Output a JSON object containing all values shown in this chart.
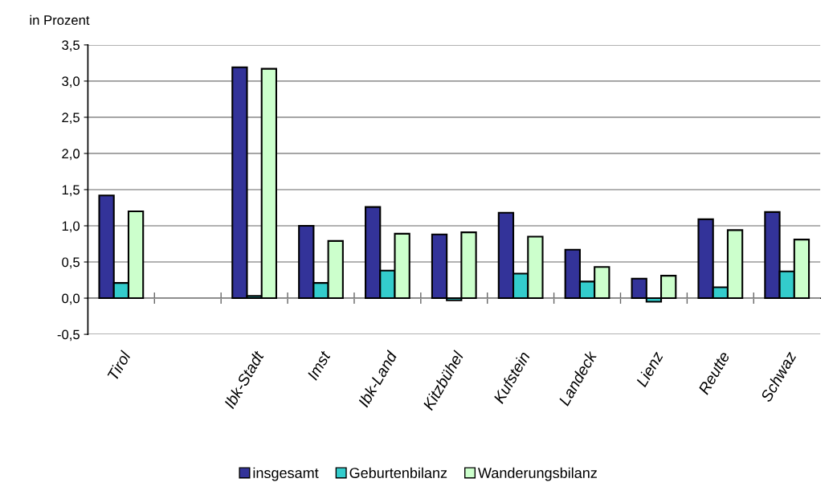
{
  "chart_data": {
    "type": "bar",
    "ylabel": "in Prozent",
    "categories": [
      "Tirol",
      null,
      "Ibk-Stadt",
      "Imst",
      "Ibk-Land",
      "Kitzbühel",
      "Kufstein",
      "Landeck",
      "Lienz",
      "Reutte",
      "Schwaz"
    ],
    "series": [
      {
        "name": "insgesamt",
        "color": "#333399",
        "values": [
          1.42,
          null,
          3.19,
          1.0,
          1.26,
          0.88,
          1.18,
          0.67,
          0.27,
          1.09,
          1.19
        ]
      },
      {
        "name": "Geburtenbilanz",
        "color": "#33cccc",
        "values": [
          0.21,
          null,
          0.03,
          0.21,
          0.38,
          -0.03,
          0.34,
          0.23,
          -0.05,
          0.15,
          0.37
        ]
      },
      {
        "name": "Wanderungsbilanz",
        "color": "#ccffcc",
        "values": [
          1.2,
          null,
          3.17,
          0.79,
          0.89,
          0.91,
          0.85,
          0.43,
          0.31,
          0.94,
          0.81
        ]
      }
    ],
    "ylim": [
      -0.5,
      3.5
    ],
    "yticks": [
      {
        "value": -0.5,
        "label": "-0,5"
      },
      {
        "value": 0,
        "label": "0,0"
      },
      {
        "value": 0.5,
        "label": "0,5"
      },
      {
        "value": 1,
        "label": "1,0"
      },
      {
        "value": 1.5,
        "label": "1,5"
      },
      {
        "value": 2,
        "label": "2,0"
      },
      {
        "value": 2.5,
        "label": "2,5"
      },
      {
        "value": 3,
        "label": "3,0"
      },
      {
        "value": 3.5,
        "label": "3,5"
      }
    ],
    "grid": "y",
    "legend": "bottom"
  }
}
